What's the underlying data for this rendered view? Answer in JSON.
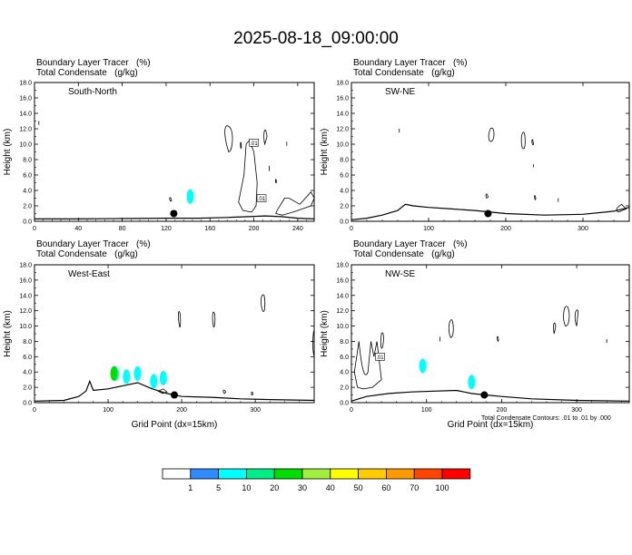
{
  "title": "2025-08-18_09:00:00",
  "panels": [
    {
      "id": "south-north",
      "field_title": "Boundary Layer Tracer   (%)",
      "field_subtitle": "Total Condensate   (g/kg)",
      "label": "South-North",
      "ylabel": "Height (km)",
      "xlabel": "",
      "xlim": [
        0,
        255
      ],
      "ylim": [
        0,
        18
      ],
      "xticks": [
        0,
        40,
        80,
        120,
        160,
        200,
        240
      ],
      "yticks": [
        "0.0",
        "2.0",
        "4.0",
        "6.0",
        "8.0",
        "10.0",
        "12.0",
        "14.0",
        "16.0",
        "18.0"
      ],
      "marker": {
        "x": 127,
        "y": 1.0
      },
      "contour_labels": [
        {
          "x": 200,
          "y": 10.2,
          "text": ".01"
        },
        {
          "x": 207,
          "y": 3.0,
          "text": ".01"
        }
      ],
      "terrain": [
        [
          0,
          0.3
        ],
        [
          40,
          0.3
        ],
        [
          80,
          0.35
        ],
        [
          120,
          0.4
        ],
        [
          150,
          0.4
        ],
        [
          175,
          0.5
        ],
        [
          195,
          0.6
        ],
        [
          210,
          0.7
        ],
        [
          225,
          0.6
        ],
        [
          240,
          0.4
        ],
        [
          255,
          0.3
        ]
      ],
      "tracer": [
        {
          "x": 142,
          "y": 3.2,
          "value": 5
        }
      ]
    },
    {
      "id": "sw-ne",
      "field_title": "Boundary Layer Tracer   (%)",
      "field_subtitle": "Total Condensate   (g/kg)",
      "label": "SW-NE",
      "ylabel": "Height (km)",
      "xlabel": "",
      "xlim": [
        0,
        360
      ],
      "ylim": [
        0,
        18
      ],
      "xticks": [
        0,
        100,
        200,
        300
      ],
      "yticks": [
        "0.0",
        "2.0",
        "4.0",
        "6.0",
        "8.0",
        "10.0",
        "12.0",
        "14.0",
        "16.0",
        "18.0"
      ],
      "marker": {
        "x": 177,
        "y": 1.0
      },
      "contour_labels": [],
      "terrain": [
        [
          0,
          0.2
        ],
        [
          20,
          0.4
        ],
        [
          40,
          0.8
        ],
        [
          60,
          1.4
        ],
        [
          70,
          2.2
        ],
        [
          80,
          2.0
        ],
        [
          100,
          1.8
        ],
        [
          130,
          1.6
        ],
        [
          160,
          1.4
        ],
        [
          200,
          1.0
        ],
        [
          250,
          0.8
        ],
        [
          300,
          0.9
        ],
        [
          340,
          1.3
        ],
        [
          360,
          1.8
        ]
      ],
      "tracer": []
    },
    {
      "id": "west-east",
      "field_title": "Boundary Layer Tracer   (%)",
      "field_subtitle": "Total Condensate   (g/kg)",
      "label": "West-East",
      "ylabel": "Height (km)",
      "xlabel": "Grid Point (dx=15km)",
      "xlim": [
        0,
        380
      ],
      "ylim": [
        0,
        18
      ],
      "xticks": [
        0,
        100,
        200,
        300
      ],
      "yticks": [
        "0.0",
        "2.0",
        "4.0",
        "6.0",
        "8.0",
        "10.0",
        "12.0",
        "14.0",
        "16.0",
        "18.0"
      ],
      "marker": {
        "x": 190,
        "y": 1.0
      },
      "contour_labels": [],
      "terrain": [
        [
          0,
          0.2
        ],
        [
          40,
          0.3
        ],
        [
          60,
          0.8
        ],
        [
          70,
          1.5
        ],
        [
          75,
          2.8
        ],
        [
          80,
          1.6
        ],
        [
          100,
          1.8
        ],
        [
          120,
          2.2
        ],
        [
          140,
          2.6
        ],
        [
          160,
          1.8
        ],
        [
          180,
          1.2
        ],
        [
          200,
          0.8
        ],
        [
          240,
          0.7
        ],
        [
          280,
          0.5
        ],
        [
          320,
          0.4
        ],
        [
          380,
          0.3
        ]
      ],
      "tracer": [
        {
          "x": 110,
          "y": 3.8,
          "value": 5
        },
        {
          "x": 125,
          "y": 3.4,
          "value": 5
        },
        {
          "x": 140,
          "y": 3.8,
          "value": 5
        },
        {
          "x": 162,
          "y": 2.8,
          "value": 5
        },
        {
          "x": 175,
          "y": 3.2,
          "value": 5
        },
        {
          "x": 108,
          "y": 3.8,
          "value": 20
        }
      ]
    },
    {
      "id": "nw-se",
      "field_title": "Boundary Layer Tracer   (%)",
      "field_subtitle": "Total Condensate   (g/kg)",
      "label": "NW-SE",
      "ylabel": "Height (km)",
      "xlabel": "Grid Point (dx=15km)",
      "xlim": [
        0,
        370
      ],
      "ylim": [
        0,
        18
      ],
      "xticks": [
        0,
        100,
        200,
        300
      ],
      "yticks": [
        "0.0",
        "2.0",
        "4.0",
        "6.0",
        "8.0",
        "10.0",
        "12.0",
        "14.0",
        "16.0",
        "18.0"
      ],
      "marker": {
        "x": 177,
        "y": 1.0
      },
      "contour_labels": [
        {
          "x": 38,
          "y": 6.0,
          "text": ".01"
        }
      ],
      "terrain": [
        [
          0,
          0.2
        ],
        [
          20,
          0.8
        ],
        [
          50,
          1.2
        ],
        [
          80,
          1.4
        ],
        [
          110,
          1.5
        ],
        [
          140,
          1.6
        ],
        [
          160,
          1.2
        ],
        [
          180,
          1.0
        ],
        [
          200,
          0.8
        ],
        [
          240,
          0.5
        ],
        [
          300,
          0.3
        ],
        [
          370,
          0.2
        ]
      ],
      "tracer": [
        {
          "x": 95,
          "y": 4.8,
          "value": 5
        },
        {
          "x": 160,
          "y": 2.7,
          "value": 5
        }
      ]
    }
  ],
  "footnote": "Total Condensate Contours: .01 to .01 by .000",
  "colorbar": {
    "colors": [
      "#ffffff",
      "#2e8cff",
      "#00ffff",
      "#00ee88",
      "#00dd00",
      "#a0ee3e",
      "#ffff00",
      "#ffcc00",
      "#ff9900",
      "#ff4400",
      "#ff0000"
    ],
    "labels": [
      "1",
      "5",
      "10",
      "20",
      "30",
      "40",
      "50",
      "60",
      "70",
      "100"
    ]
  },
  "chart_data": [
    {
      "type": "heatmap",
      "title": "Boundary Layer Tracer   (%)",
      "subtitle": "Total Condensate   (g/kg)",
      "panel_label": "South-North",
      "xlabel": "",
      "ylabel": "Height (km)",
      "xlim": [
        0,
        255
      ],
      "ylim": [
        0,
        18
      ],
      "grid": false
    },
    {
      "type": "heatmap",
      "title": "Boundary Layer Tracer   (%)",
      "subtitle": "Total Condensate   (g/kg)",
      "panel_label": "SW-NE",
      "xlabel": "",
      "ylabel": "Height (km)",
      "xlim": [
        0,
        360
      ],
      "ylim": [
        0,
        18
      ],
      "grid": false
    },
    {
      "type": "heatmap",
      "title": "Boundary Layer Tracer   (%)",
      "subtitle": "Total Condensate   (g/kg)",
      "panel_label": "West-East",
      "xlabel": "Grid Point (dx=15km)",
      "ylabel": "Height (km)",
      "xlim": [
        0,
        380
      ],
      "ylim": [
        0,
        18
      ],
      "grid": false
    },
    {
      "type": "heatmap",
      "title": "Boundary Layer Tracer   (%)",
      "subtitle": "Total Condensate   (g/kg)",
      "panel_label": "NW-SE",
      "xlabel": "Grid Point (dx=15km)",
      "ylabel": "Height (km)",
      "xlim": [
        0,
        370
      ],
      "ylim": [
        0,
        18
      ],
      "grid": false
    }
  ]
}
